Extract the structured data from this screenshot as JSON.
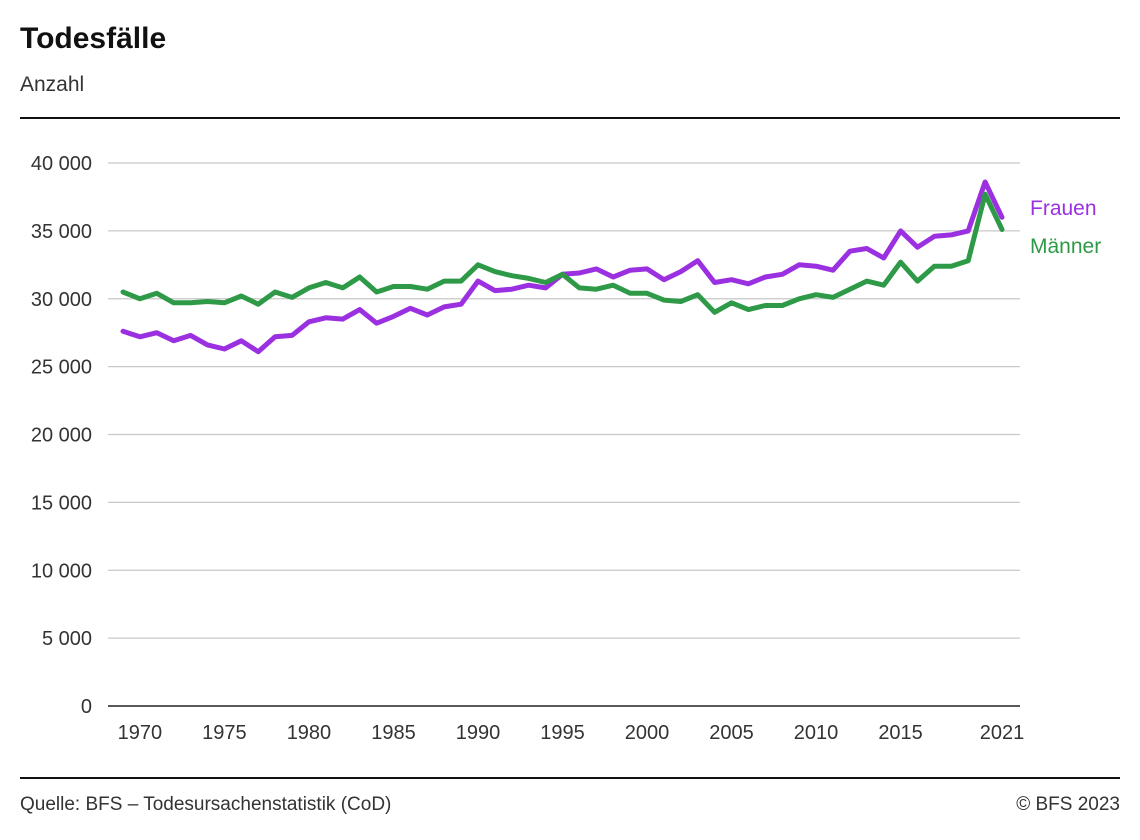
{
  "header": {
    "title": "Todesfälle",
    "subtitle": "Anzahl"
  },
  "footer": {
    "source": "Quelle: BFS – Todesursachenstatistik (CoD)",
    "copyright": "© BFS 2023"
  },
  "chart_data": {
    "type": "line",
    "title": "Todesfälle",
    "subtitle": "Anzahl",
    "x": [
      1969,
      1970,
      1971,
      1972,
      1973,
      1974,
      1975,
      1976,
      1977,
      1978,
      1979,
      1980,
      1981,
      1982,
      1983,
      1984,
      1985,
      1986,
      1987,
      1988,
      1989,
      1990,
      1991,
      1992,
      1993,
      1994,
      1995,
      1996,
      1997,
      1998,
      1999,
      2000,
      2001,
      2002,
      2003,
      2004,
      2005,
      2006,
      2007,
      2008,
      2009,
      2010,
      2011,
      2012,
      2013,
      2014,
      2015,
      2016,
      2017,
      2018,
      2019,
      2020,
      2021
    ],
    "x_ticks": [
      1970,
      1975,
      1980,
      1985,
      1990,
      1995,
      2000,
      2005,
      2010,
      2015,
      2021
    ],
    "x_tick_labels": [
      "1970",
      "1975",
      "1980",
      "1985",
      "1990",
      "1995",
      "2000",
      "2005",
      "2010",
      "2015",
      "2021"
    ],
    "ylim": [
      0,
      40000
    ],
    "y_ticks": [
      0,
      5000,
      10000,
      15000,
      20000,
      25000,
      30000,
      35000,
      40000
    ],
    "y_tick_labels": [
      "0",
      "5 000",
      "10 000",
      "15 000",
      "20 000",
      "25 000",
      "30 000",
      "35 000",
      "40 000"
    ],
    "grid": true,
    "legend_placement": "right, inline at line ends",
    "series": [
      {
        "name": "Frauen",
        "color": "#9b30e0",
        "values": [
          27600,
          27200,
          27500,
          26900,
          27300,
          26600,
          26300,
          26900,
          26100,
          27200,
          27300,
          28300,
          28600,
          28500,
          29200,
          28200,
          28700,
          29300,
          28800,
          29400,
          29600,
          31300,
          30600,
          30700,
          31000,
          30800,
          31800,
          31900,
          32200,
          31600,
          32100,
          32200,
          31400,
          32000,
          32800,
          31200,
          31400,
          31100,
          31600,
          31800,
          32500,
          32400,
          32100,
          33500,
          33700,
          33000,
          35000,
          33800,
          34600,
          34700,
          35000,
          38600,
          36000
        ]
      },
      {
        "name": "Männer",
        "color": "#2e9a48",
        "values": [
          30500,
          30000,
          30400,
          29700,
          29700,
          29800,
          29700,
          30200,
          29600,
          30500,
          30100,
          30800,
          31200,
          30800,
          31600,
          30500,
          30900,
          30900,
          30700,
          31300,
          31300,
          32500,
          32000,
          31700,
          31500,
          31200,
          31800,
          30800,
          30700,
          31000,
          30400,
          30400,
          29900,
          29800,
          30300,
          29000,
          29700,
          29200,
          29500,
          29500,
          30000,
          30300,
          30100,
          30700,
          31300,
          31000,
          32700,
          31300,
          32400,
          32400,
          32800,
          37700,
          35100
        ]
      }
    ]
  }
}
